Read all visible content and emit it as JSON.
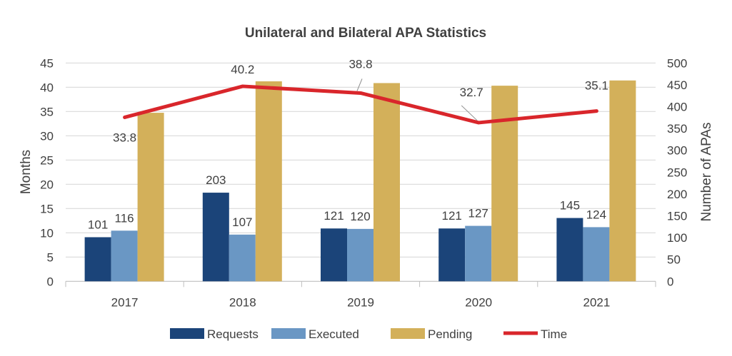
{
  "chart_data": {
    "type": "bar+line",
    "title": "Unilateral and Bilateral APA Statistics",
    "categories": [
      "2017",
      "2018",
      "2019",
      "2020",
      "2021"
    ],
    "ylabel_left": "Months",
    "ylabel_right": "Number of APAs",
    "ylim_left": [
      0,
      45
    ],
    "ylim_right": [
      0,
      500
    ],
    "yticks_left": [
      0,
      5,
      10,
      15,
      20,
      25,
      30,
      35,
      40,
      45
    ],
    "yticks_right": [
      0,
      50,
      100,
      150,
      200,
      250,
      300,
      350,
      400,
      450,
      500
    ],
    "grid": true,
    "legend_position": "bottom",
    "series": [
      {
        "name": "Requests",
        "type": "bar",
        "axis": "right",
        "color": "#1b4479",
        "values": [
          101,
          203,
          121,
          121,
          145
        ],
        "labels": [
          "101",
          "203",
          "121",
          "121",
          "145"
        ]
      },
      {
        "name": "Executed",
        "type": "bar",
        "axis": "right",
        "color": "#6a97c4",
        "values": [
          116,
          107,
          120,
          127,
          124
        ],
        "labels": [
          "116",
          "107",
          "120",
          "127",
          "124"
        ]
      },
      {
        "name": "Pending",
        "type": "bar",
        "axis": "right",
        "color": "#d3b05a",
        "values": [
          386,
          458,
          454,
          448,
          460
        ]
      },
      {
        "name": "Time",
        "type": "line",
        "axis": "left",
        "color": "#d9262b",
        "values": [
          33.8,
          40.2,
          38.8,
          32.7,
          35.1
        ],
        "labels": [
          "33.8",
          "40.2",
          "38.8",
          "32.7",
          "35.1"
        ]
      }
    ]
  }
}
